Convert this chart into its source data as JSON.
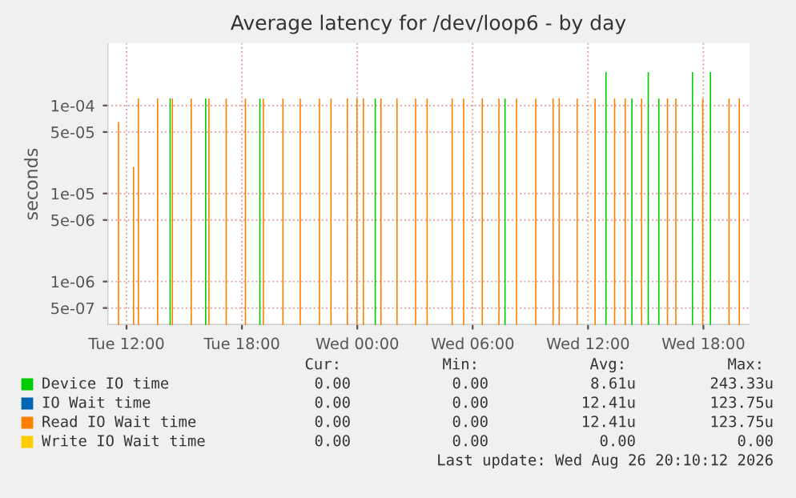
{
  "chart_data": {
    "type": "bar",
    "title": "Average latency for /dev/loop6 - by day",
    "ylabel": "seconds",
    "log": "y",
    "grid": true,
    "legend": "bottom",
    "xlim": [
      "2026-08-25T11:00",
      "2026-08-26T20:24"
    ],
    "xticks": [
      {
        "value": "2026-08-25T12:00",
        "label": "Tue 12:00"
      },
      {
        "value": "2026-08-25T18:00",
        "label": "Tue 18:00"
      },
      {
        "value": "2026-08-26T00:00",
        "label": "Wed 00:00"
      },
      {
        "value": "2026-08-26T06:00",
        "label": "Wed 06:00"
      },
      {
        "value": "2026-08-26T12:00",
        "label": "Wed 12:00"
      },
      {
        "value": "2026-08-26T18:00",
        "label": "Wed 18:00"
      }
    ],
    "ylim": [
      3.2e-07,
      0.00051
    ],
    "yticks": [
      {
        "value": 0.0001,
        "label": "1e-04"
      },
      {
        "value": 5e-05,
        "label": "5e-05"
      },
      {
        "value": 1e-05,
        "label": "1e-05"
      },
      {
        "value": 5e-06,
        "label": "5e-06"
      },
      {
        "value": 1e-06,
        "label": "1e-06"
      },
      {
        "value": 5e-07,
        "label": "5e-07"
      }
    ],
    "series": [
      {
        "name": "Device IO time",
        "color": "#00cc00",
        "x": [
          "2026-08-25T14:16",
          "2026-08-25T16:07",
          "2026-08-25T18:56",
          "2026-08-26T00:56",
          "2026-08-26T07:41",
          "2026-08-26T12:56",
          "2026-08-26T14:17",
          "2026-08-26T15:08",
          "2026-08-26T15:41",
          "2026-08-26T17:26",
          "2026-08-26T18:22"
        ],
        "values": [
          0.00012,
          0.00012,
          0.00012,
          0.00012,
          0.00012,
          0.00024,
          0.00012,
          0.00024,
          0.00012,
          0.00024,
          0.00024
        ]
      },
      {
        "name": "IO Wait time",
        "color": "#0066b3"
      },
      {
        "name": "Read IO Wait time",
        "color": "#ff8000",
        "x": [
          "2026-08-25T11:35",
          "2026-08-25T12:22",
          "2026-08-25T12:37",
          "2026-08-25T13:37",
          "2026-08-25T14:23",
          "2026-08-25T15:22",
          "2026-08-25T16:17",
          "2026-08-25T17:11",
          "2026-08-25T18:11",
          "2026-08-25T19:07",
          "2026-08-25T20:08",
          "2026-08-25T21:02",
          "2026-08-25T22:02",
          "2026-08-25T22:38",
          "2026-08-25T23:29",
          "2026-08-25T23:59",
          "2026-08-26T00:19",
          "2026-08-26T01:14",
          "2026-08-26T02:04",
          "2026-08-26T03:02",
          "2026-08-26T03:38",
          "2026-08-26T04:56",
          "2026-08-26T05:32",
          "2026-08-26T06:30",
          "2026-08-26T07:22",
          "2026-08-26T08:17",
          "2026-08-26T09:17",
          "2026-08-26T10:11",
          "2026-08-26T10:30",
          "2026-08-26T11:26",
          "2026-08-26T12:22",
          "2026-08-26T13:23",
          "2026-08-26T13:56",
          "2026-08-26T14:47",
          "2026-08-26T16:08",
          "2026-08-26T16:34",
          "2026-08-26T17:58",
          "2026-08-26T19:20",
          "2026-08-26T19:52"
        ],
        "values": [
          6.5e-05,
          2e-05,
          0.00012,
          0.00012,
          0.00012,
          0.00012,
          0.00012,
          0.00012,
          0.00012,
          0.00012,
          0.00012,
          0.00012,
          0.00012,
          0.00012,
          0.00012,
          0.00012,
          0.00012,
          0.00012,
          0.00012,
          0.00012,
          0.00012,
          0.00012,
          0.00012,
          0.00012,
          0.00012,
          0.00012,
          0.00012,
          0.00012,
          0.00012,
          0.00012,
          0.00012,
          0.00012,
          0.00012,
          0.00012,
          0.00012,
          0.00012,
          0.00012,
          0.00012,
          0.00012
        ]
      },
      {
        "name": "Write IO Wait time",
        "color": "#ffcc00"
      }
    ],
    "annotations": [
      "Cur:",
      "Min:",
      "Avg:",
      "Max:",
      "0.00",
      "0.00",
      "8.61u",
      "243.33u",
      "0.00",
      "0.00",
      "12.41u",
      "123.75u",
      "0.00",
      "0.00",
      "12.41u",
      "123.75u",
      "0.00",
      "0.00",
      "0.00",
      "0.00",
      "Last update: Wed Aug 26 20:10:12 2026"
    ]
  }
}
